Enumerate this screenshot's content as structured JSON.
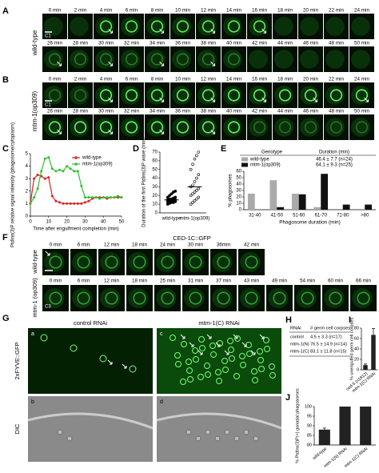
{
  "panels": {
    "A": {
      "label": "A",
      "genotype": "wild-type",
      "cell": "C1",
      "row1": [
        "0 min",
        "2 min",
        "4 min",
        "6 min",
        "8 min",
        "10 min",
        "12 min",
        "14 min",
        "16 min",
        "18 min",
        "20 min",
        "22 min",
        "24 min"
      ],
      "row2": [
        "26 min",
        "28 min",
        "30 min",
        "32 min",
        "34 min",
        "36 min",
        "38 min",
        "40 min",
        "42 min",
        "44 min",
        "46 min",
        "48 min",
        "50 min"
      ]
    },
    "B": {
      "label": "B",
      "genotype": "mtm-1(op309)",
      "cell": "C1",
      "row1": [
        "0 min",
        "2 min",
        "4 min",
        "6 min",
        "8 min",
        "10 min",
        "12 min",
        "14 min",
        "16 min",
        "18 min",
        "20 min",
        "22 min",
        "24 min"
      ],
      "row2": [
        "26 min",
        "28 min",
        "30 min",
        "32 min",
        "34 min",
        "36 min",
        "38 min",
        "40 min",
        "42 min",
        "44 min",
        "46 min",
        "48 min",
        "50 min"
      ]
    },
    "F": {
      "label": "F",
      "title": "CED-1C::GFP",
      "cell": "C3",
      "rows": [
        {
          "genotype": "wild-type",
          "times": [
            "0 min",
            "6 min",
            "12 min",
            "18 min",
            "24 min",
            "30 min",
            "36min",
            "42 min"
          ]
        },
        {
          "genotype": "mtm-1 (op309)",
          "times": [
            "0 min",
            "6 min",
            "12 min",
            "18 min",
            "25 min",
            "31 min",
            "37 min",
            "43 min",
            "49 min",
            "54 min",
            "60 min",
            "66 min"
          ]
        }
      ]
    },
    "G": {
      "label": "G",
      "columns": [
        "control RNAi",
        "mtm-1(C) RNAi"
      ],
      "rows": [
        "2xFYVE::GFP",
        "DIC"
      ],
      "subpanels": [
        "a",
        "b",
        "c",
        "d"
      ]
    },
    "H": {
      "label": "H",
      "header": [
        "RNAi",
        "# germ cell corpses"
      ],
      "rows": [
        [
          "control",
          "4.5 ± 3.3 (n=17)"
        ],
        [
          "mtm-1(N)",
          "76.5 ± 14.9 (n=14)"
        ],
        [
          "mtm-1(C)",
          "83.1 ± 11.8 (n=15)"
        ]
      ]
    }
  },
  "chart_data": [
    {
      "type": "line",
      "panel": "C",
      "y_label": "PtdIns(3)P relative signal intensity (phagosome/cytoplasm)",
      "x_label": "Time after engulfment completion (min)",
      "x": [
        0,
        2,
        4,
        6,
        8,
        10,
        12,
        14,
        16,
        18,
        20,
        22,
        24,
        26,
        28,
        30,
        32,
        34,
        36,
        38,
        40,
        42,
        44,
        46,
        48,
        50
      ],
      "series": [
        {
          "name": "wild-type",
          "color": "#e02020",
          "values": [
            1.0,
            3.0,
            3.3,
            3.2,
            3.0,
            3.1,
            1.6,
            1.2,
            1.1,
            1.0,
            1.0,
            1.0,
            1.0,
            1.0,
            1.0,
            1.1,
            1.2,
            1.4,
            1.5,
            1.5,
            1.5,
            1.4,
            1.5,
            1.5,
            1.5,
            1.5
          ]
        },
        {
          "name": "mtm-1(op309)",
          "color": "#30c030",
          "values": [
            1.0,
            1.5,
            2.2,
            3.6,
            4.6,
            4.7,
            3.8,
            3.6,
            3.7,
            3.6,
            4.0,
            3.8,
            3.6,
            3.6,
            2.4,
            1.5,
            1.5,
            1.5,
            1.5,
            1.4,
            1.5,
            1.5,
            1.5,
            1.5,
            1.6,
            1.5
          ]
        }
      ],
      "xlim": [
        0,
        50
      ],
      "xticks": [
        0,
        10,
        20,
        30,
        40,
        50
      ],
      "ylim": [
        0,
        5
      ],
      "yticks": [
        0,
        1,
        2,
        3,
        4,
        5
      ]
    },
    {
      "type": "strip",
      "panel": "D",
      "y_label": "Duration of the first PtdIns(3)P wave (min)",
      "categories": [
        "wild-type",
        "mtm-1(op309)"
      ],
      "points": [
        [
          10,
          11,
          12,
          12,
          13,
          13,
          14,
          14,
          14,
          15,
          15,
          16,
          16,
          17,
          18,
          18,
          20,
          22,
          24,
          25
        ],
        [
          10,
          12,
          14,
          16,
          18,
          20,
          22,
          24,
          26,
          28,
          30,
          32,
          36,
          40,
          44,
          50,
          56,
          62,
          66,
          70
        ]
      ],
      "medians": [
        15,
        30
      ],
      "ylim": [
        0,
        70
      ],
      "yticks": [
        0,
        10,
        20,
        30,
        40,
        50,
        60,
        70
      ]
    },
    {
      "type": "grouped-bar",
      "panel": "E",
      "y_label": "% phagosomes",
      "x_label": "Phagosome duration (min)",
      "legend_header": [
        "Genotype",
        "Duration (min)"
      ],
      "categories": [
        "31-40",
        "41-50",
        "51-60",
        "61-70",
        "71-80",
        ">80"
      ],
      "series": [
        {
          "name": "wild-type",
          "color": "#aaaaaa",
          "duration": "46.4 ± 7.7 (n=24)",
          "values": [
            25,
            46,
            25,
            4,
            0,
            0
          ]
        },
        {
          "name": "mtm-1(op309)",
          "color": "#111111",
          "duration": "64.1 ± 9.3 (n=25)",
          "values": [
            0,
            4,
            24,
            56,
            8,
            8
          ]
        }
      ],
      "ylim": [
        0,
        60
      ],
      "yticks": [
        0,
        10,
        20,
        30,
        40,
        50,
        60
      ]
    },
    {
      "type": "bar",
      "panel": "I",
      "y_label": "% unengulfed germ cell corpses",
      "categories": [
        "ced-5 (n1812)",
        "mtm-1(C) RNAi"
      ],
      "values": [
        9,
        67
      ],
      "errors": [
        2,
        12
      ],
      "color": "#222222",
      "ylim": [
        0,
        80
      ],
      "yticks": [
        0,
        20,
        40,
        60,
        80
      ]
    },
    {
      "type": "bar",
      "panel": "J",
      "y_label": "% PtdIns(3)P(+) gonadal phagosomes",
      "categories": [
        "wild-type",
        "mtm-1(N) RNAi",
        "mtm-1(C) RNAi"
      ],
      "values": [
        88,
        100,
        100
      ],
      "errors": [
        0.8,
        null,
        null
      ],
      "color": "#222222",
      "ylim": [
        80,
        100
      ],
      "yticks": [
        80,
        85,
        90,
        95,
        100
      ]
    }
  ]
}
